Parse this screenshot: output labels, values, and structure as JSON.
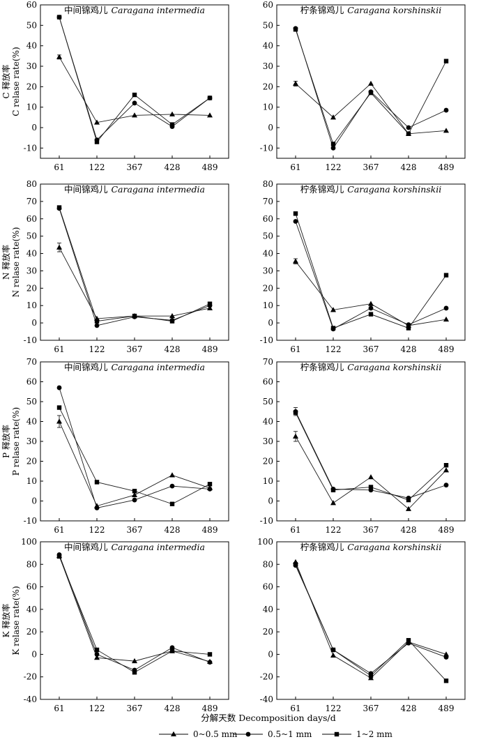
{
  "figure": {
    "xlabel": "分解天数 Decomposition days/d",
    "legend": [
      {
        "label": "0~0.5 mm",
        "marker": "triangle"
      },
      {
        "label": "0.5~1 mm",
        "marker": "circle"
      },
      {
        "label": "1~2 mm",
        "marker": "square"
      }
    ]
  },
  "chart_data": [
    {
      "type": "line",
      "element": "C",
      "species_cn": "中间锦鸡儿",
      "species_latin": "Caragana intermedia",
      "ylabel_cn": "C 释放率",
      "ylabel_en": "C relase rate(%)",
      "categories": [
        "61",
        "122",
        "367",
        "428",
        "489"
      ],
      "ylim": [
        -15,
        60
      ],
      "yticks": [
        -10,
        0,
        10,
        20,
        30,
        40,
        50,
        60
      ],
      "series": [
        {
          "name": "0~0.5 mm",
          "values": [
            34.5,
            2.5,
            6,
            6.5,
            6
          ],
          "errors": [
            1,
            0,
            0,
            0,
            0
          ]
        },
        {
          "name": "0.5~1 mm",
          "values": [
            54,
            -6,
            12,
            0.5,
            14.5
          ],
          "errors": [
            0,
            0,
            0,
            0,
            0
          ]
        },
        {
          "name": "1~2 mm",
          "values": [
            54,
            -7,
            16,
            1.5,
            14.5
          ],
          "errors": [
            0,
            0,
            0,
            0,
            0
          ]
        }
      ]
    },
    {
      "type": "line",
      "element": "C",
      "species_cn": "柠条锦鸡儿",
      "species_latin": "Caragana korshinskii",
      "ylabel_cn": "",
      "ylabel_en": "",
      "categories": [
        "61",
        "122",
        "367",
        "428",
        "489"
      ],
      "ylim": [
        -15,
        60
      ],
      "yticks": [
        -10,
        0,
        10,
        20,
        30,
        40,
        50,
        60
      ],
      "series": [
        {
          "name": "0~0.5 mm",
          "values": [
            21.5,
            5,
            21.5,
            -3,
            -1.5
          ],
          "errors": [
            1.2,
            0,
            0,
            0,
            0
          ]
        },
        {
          "name": "0.5~1 mm",
          "values": [
            48.5,
            -10,
            17.5,
            0,
            8.5
          ],
          "errors": [
            0,
            0,
            0,
            0,
            0
          ]
        },
        {
          "name": "1~2 mm",
          "values": [
            48,
            -8,
            17,
            -3,
            32.5
          ],
          "errors": [
            0,
            0,
            0,
            0,
            0
          ]
        }
      ]
    },
    {
      "type": "line",
      "element": "N",
      "species_cn": "中间锦鸡儿",
      "species_latin": "Caragana intermedia",
      "ylabel_cn": "N 释放率",
      "ylabel_en": "N relase rate(%)",
      "categories": [
        "61",
        "122",
        "367",
        "428",
        "489"
      ],
      "ylim": [
        -10,
        80
      ],
      "yticks": [
        -10,
        0,
        10,
        20,
        30,
        40,
        50,
        60,
        70,
        80
      ],
      "series": [
        {
          "name": "0~0.5 mm",
          "values": [
            43.5,
            2.5,
            4,
            4,
            8.5
          ],
          "errors": [
            2.5,
            0,
            0,
            0,
            0
          ]
        },
        {
          "name": "0.5~1 mm",
          "values": [
            66,
            -1.5,
            3.5,
            1.5,
            10
          ],
          "errors": [
            0,
            0,
            0,
            0,
            0
          ]
        },
        {
          "name": "1~2 mm",
          "values": [
            66.5,
            1,
            4,
            1,
            11
          ],
          "errors": [
            0,
            0,
            0,
            0,
            0
          ]
        }
      ]
    },
    {
      "type": "line",
      "element": "N",
      "species_cn": "柠条锦鸡儿",
      "species_latin": "Caragana korshinskii",
      "ylabel_cn": "",
      "ylabel_en": "",
      "categories": [
        "61",
        "122",
        "367",
        "428",
        "489"
      ],
      "ylim": [
        -10,
        80
      ],
      "yticks": [
        -10,
        0,
        10,
        20,
        30,
        40,
        50,
        60,
        70,
        80
      ],
      "series": [
        {
          "name": "0~0.5 mm",
          "values": [
            35.5,
            7.5,
            11,
            -1.5,
            2
          ],
          "errors": [
            1.5,
            0,
            0,
            0,
            0
          ]
        },
        {
          "name": "0.5~1 mm",
          "values": [
            58.5,
            -3.5,
            8.5,
            -1,
            8.5
          ],
          "errors": [
            0,
            0,
            0,
            0,
            0
          ]
        },
        {
          "name": "1~2 mm",
          "values": [
            63,
            -3,
            5,
            -3,
            27.5
          ],
          "errors": [
            0,
            0,
            0,
            0,
            0
          ]
        }
      ]
    },
    {
      "type": "line",
      "element": "P",
      "species_cn": "中间锦鸡儿",
      "species_latin": "Caragana intermedia",
      "ylabel_cn": "P 释放率",
      "ylabel_en": "P relase rate(%)",
      "categories": [
        "61",
        "122",
        "367",
        "428",
        "489"
      ],
      "ylim": [
        -10,
        70
      ],
      "yticks": [
        -10,
        0,
        10,
        20,
        30,
        40,
        50,
        60,
        70
      ],
      "series": [
        {
          "name": "0~0.5 mm",
          "values": [
            40,
            -2.5,
            3,
            13,
            6.5
          ],
          "errors": [
            3,
            0,
            0,
            0,
            0
          ]
        },
        {
          "name": "0.5~1 mm",
          "values": [
            57,
            -3.5,
            0.5,
            7.5,
            6
          ],
          "errors": [
            0,
            0,
            0,
            0,
            0
          ]
        },
        {
          "name": "1~2 mm",
          "values": [
            47,
            9.5,
            5,
            -1.5,
            8.5
          ],
          "errors": [
            0,
            0,
            0,
            0,
            0
          ]
        }
      ]
    },
    {
      "type": "line",
      "element": "P",
      "species_cn": "柠条锦鸡儿",
      "species_latin": "Caragana korshinskii",
      "ylabel_cn": "",
      "ylabel_en": "",
      "categories": [
        "61",
        "122",
        "367",
        "428",
        "489"
      ],
      "ylim": [
        -10,
        70
      ],
      "yticks": [
        -10,
        0,
        10,
        20,
        30,
        40,
        50,
        60,
        70
      ],
      "series": [
        {
          "name": "0~0.5 mm",
          "values": [
            32.5,
            -1,
            12,
            -4,
            15.5
          ],
          "errors": [
            2.5,
            0,
            0,
            0,
            0
          ]
        },
        {
          "name": "0.5~1 mm",
          "values": [
            45,
            6,
            5.5,
            1.5,
            8
          ],
          "errors": [
            2,
            0,
            0,
            0,
            0
          ]
        },
        {
          "name": "1~2 mm",
          "values": [
            44.5,
            5.5,
            7,
            0.5,
            18
          ],
          "errors": [
            0,
            0,
            0,
            0,
            0
          ]
        }
      ]
    },
    {
      "type": "line",
      "element": "K",
      "species_cn": "中间锦鸡儿",
      "species_latin": "Caragana intermedia",
      "ylabel_cn": "K 释放率",
      "ylabel_en": "K relase rate(%)",
      "categories": [
        "61",
        "122",
        "367",
        "428",
        "489"
      ],
      "ylim": [
        -40,
        100
      ],
      "yticks": [
        -40,
        -20,
        0,
        20,
        40,
        60,
        80,
        100
      ],
      "series": [
        {
          "name": "0~0.5 mm",
          "values": [
            87.5,
            -3,
            -6,
            3,
            -6.5
          ],
          "errors": [
            0,
            0,
            0,
            0,
            0
          ]
        },
        {
          "name": "0.5~1 mm",
          "values": [
            88.5,
            0,
            -14,
            6,
            -7
          ],
          "errors": [
            0,
            0,
            0,
            0,
            0
          ]
        },
        {
          "name": "1~2 mm",
          "values": [
            87,
            4,
            -16,
            3,
            0
          ],
          "errors": [
            0,
            0,
            0,
            0,
            0
          ]
        }
      ]
    },
    {
      "type": "line",
      "element": "K",
      "species_cn": "柠条锦鸡儿",
      "species_latin": "Caragana korshinskii",
      "ylabel_cn": "",
      "ylabel_en": "",
      "categories": [
        "61",
        "122",
        "367",
        "428",
        "489"
      ],
      "ylim": [
        -40,
        100
      ],
      "yticks": [
        -40,
        -20,
        0,
        20,
        40,
        60,
        80,
        100
      ],
      "series": [
        {
          "name": "0~0.5 mm",
          "values": [
            82,
            -1,
            -21,
            11,
            0
          ],
          "errors": [
            0,
            0,
            0,
            0,
            0
          ]
        },
        {
          "name": "0.5~1 mm",
          "values": [
            79,
            4,
            -17,
            10,
            -2.5
          ],
          "errors": [
            0,
            0,
            0,
            0,
            0
          ]
        },
        {
          "name": "1~2 mm",
          "values": [
            80,
            4,
            -19,
            12.5,
            -23.5
          ],
          "errors": [
            0,
            0,
            0,
            0,
            0
          ]
        }
      ]
    }
  ]
}
